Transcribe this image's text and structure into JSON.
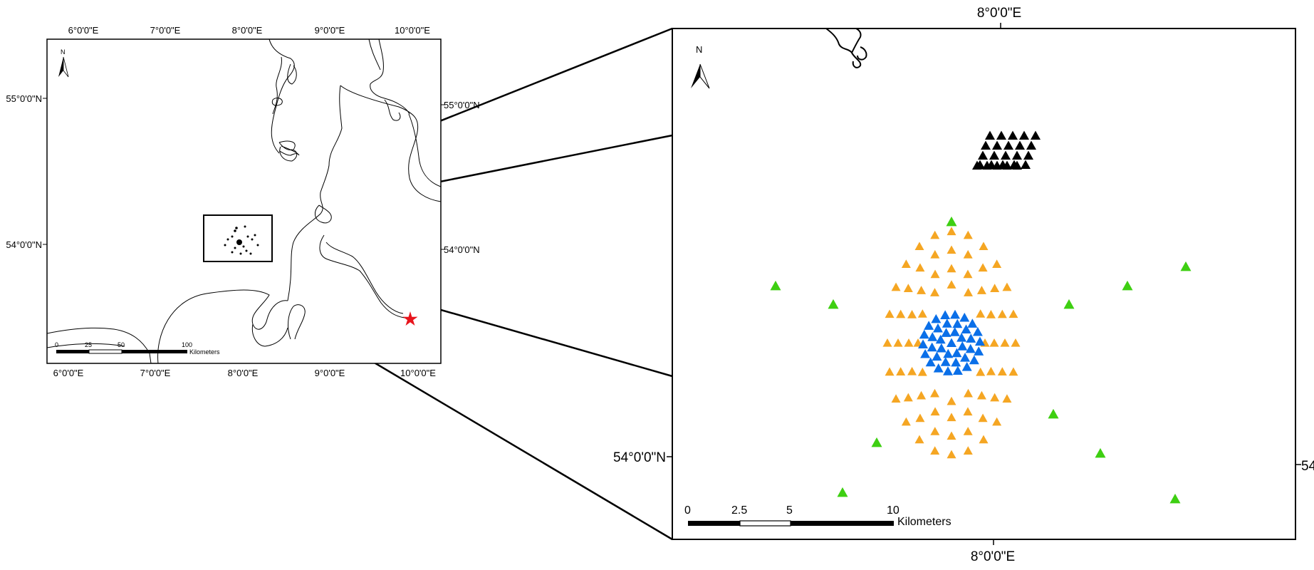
{
  "overview_map": {
    "top_lon_labels": [
      "6°0'0\"E",
      "7°0'0\"E",
      "8°0'0\"E",
      "9°0'0\"E",
      "10°0'0\"E"
    ],
    "bottom_lon_labels": [
      "6°0'0\"E",
      "7°0'0\"E",
      "8°0'0\"E",
      "9°0'0\"E",
      "10°0'0\"E"
    ],
    "left_lat_labels": [
      "55°0'0\"N",
      "54°0'0\"N"
    ],
    "right_lat_labels": [
      "55°0'0\"N",
      "54°0'0\"N"
    ],
    "north_label": "N",
    "scale_bar": {
      "ticks": [
        "0",
        "25",
        "50",
        "100"
      ],
      "unit": "Kilometers"
    },
    "marker_color": "#e8141c",
    "marker_icon": "star-icon"
  },
  "detail_map": {
    "top_lon_label": "8°0'0\"E",
    "bottom_lon_label": "8°0'0\"E",
    "left_lat_label": "54°0'0\"N",
    "right_lat_label": "54",
    "north_label": "N",
    "scale_bar": {
      "ticks": [
        "0",
        "2.5",
        "5",
        "10"
      ],
      "unit": "Kilometers"
    },
    "colors": {
      "black": "#000000",
      "orange": "#f5a623",
      "blue": "#0a6fe8",
      "green": "#3ecf12"
    },
    "icon": "triangle-icon"
  }
}
